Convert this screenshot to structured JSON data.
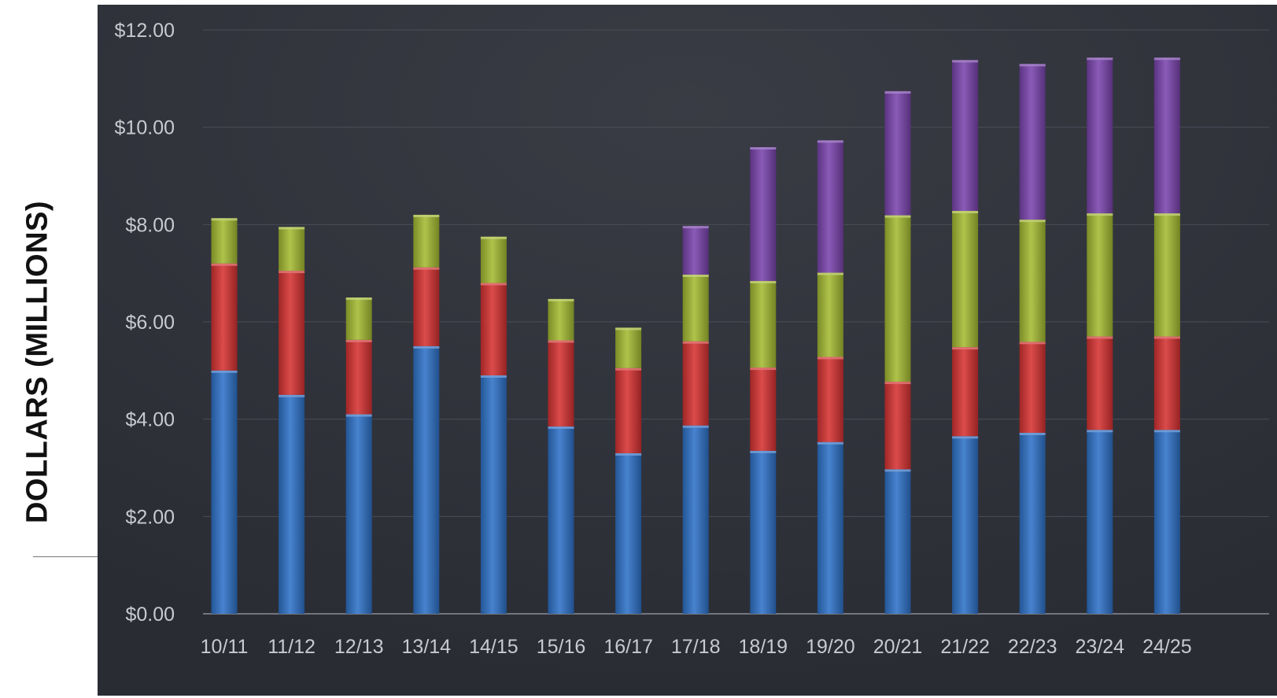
{
  "chart_data": {
    "type": "bar",
    "stacked": true,
    "title": "",
    "xlabel": "",
    "ylabel": "DOLLARS (MILLIONS)",
    "ylim": [
      0,
      12
    ],
    "yticks": [
      "$0.00",
      "$2.00",
      "$4.00",
      "$6.00",
      "$8.00",
      "$10.00",
      "$12.00"
    ],
    "ytick_values": [
      0,
      2,
      4,
      6,
      8,
      10,
      12
    ],
    "grid": true,
    "legend": "none",
    "categories": [
      "10/11",
      "11/12",
      "12/13",
      "13/14",
      "14/15",
      "15/16",
      "16/17",
      "17/18",
      "18/19",
      "19/20",
      "20/21",
      "21/22",
      "22/23",
      "23/24",
      "24/25"
    ],
    "series": [
      {
        "color": "#2f72c8",
        "values": [
          5.0,
          4.5,
          4.1,
          5.5,
          4.9,
          3.85,
          3.3,
          3.87,
          3.35,
          3.53,
          2.97,
          3.65,
          3.72,
          3.78,
          3.78
        ]
      },
      {
        "color": "#d63232",
        "values": [
          2.2,
          2.55,
          1.53,
          1.62,
          1.9,
          1.77,
          1.75,
          1.73,
          1.71,
          1.75,
          1.8,
          1.83,
          1.87,
          1.92,
          1.92
        ]
      },
      {
        "color": "#a4bb32",
        "values": [
          0.93,
          0.9,
          0.87,
          1.08,
          0.95,
          0.85,
          0.83,
          1.37,
          1.78,
          1.73,
          3.42,
          2.8,
          2.51,
          2.53,
          2.53
        ]
      },
      {
        "color": "#7a45ad",
        "values": [
          0,
          0,
          0,
          0,
          0,
          0,
          0,
          1.0,
          2.75,
          2.72,
          2.55,
          3.1,
          3.2,
          3.2,
          3.2
        ]
      }
    ]
  },
  "colors": {
    "plot_background": "#2a2c34",
    "grid": "#4a4d57",
    "tick_text": "#c8cacf"
  }
}
